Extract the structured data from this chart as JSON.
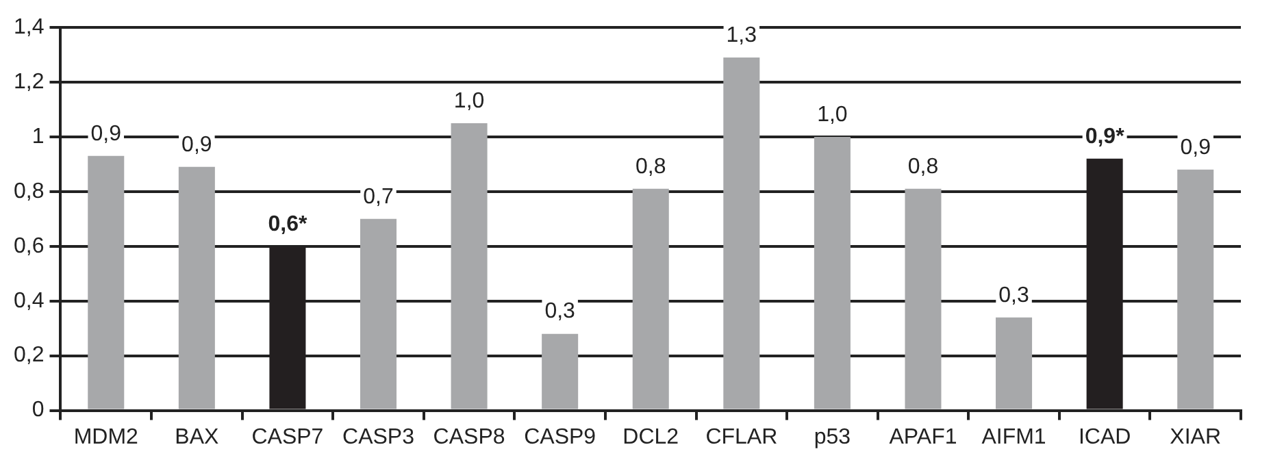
{
  "chart_data": {
    "type": "bar",
    "categories": [
      "MDM2",
      "BAX",
      "CASP7",
      "CASP3",
      "CASP8",
      "CASP9",
      "DCL2",
      "CFLAR",
      "p53",
      "APAF1",
      "AIFM1",
      "ICAD",
      "XIAR"
    ],
    "values": [
      0.93,
      0.89,
      0.6,
      0.7,
      1.05,
      0.28,
      0.81,
      1.29,
      1.0,
      0.81,
      0.34,
      0.92,
      0.88
    ],
    "colors": [
      "#a7a8aa",
      "#a7a8aa",
      "#231f20",
      "#a7a8aa",
      "#a7a8aa",
      "#a7a8aa",
      "#a7a8aa",
      "#a7a8aa",
      "#a7a8aa",
      "#a7a8aa",
      "#a7a8aa",
      "#231f20",
      "#a7a8aa"
    ],
    "value_labels": [
      "0,9",
      "0,9",
      "0,6*",
      "0,7",
      "1,0",
      "0,3",
      "0,8",
      "1,3",
      "1,0",
      "0,8",
      "0,3",
      "0,9*",
      "0,9"
    ],
    "ylim": [
      0,
      1.4
    ],
    "yticks": [
      0,
      {
        "value": 0.2,
        "label": "0,2"
      },
      {
        "value": 0.4,
        "label": "0,4"
      },
      {
        "value": 0.6,
        "label": "0,6"
      },
      {
        "value": 0.8,
        "label": "0,8"
      },
      1,
      {
        "value": 1.2,
        "label": "1,2"
      },
      {
        "value": 1.4,
        "label": "1,4"
      }
    ],
    "grid": "y",
    "legend": false
  }
}
